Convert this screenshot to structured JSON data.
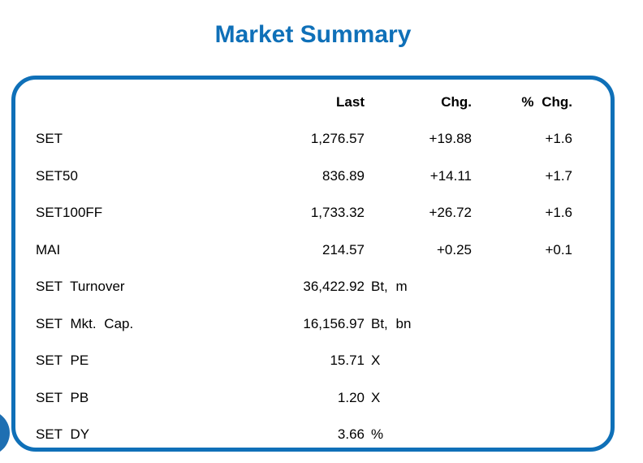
{
  "page": {
    "title": "Market Summary"
  },
  "colors": {
    "accent": "#0f70b8",
    "circle": "#1e6fb2",
    "text": "#000000"
  },
  "decor": {
    "corner_circle": "blue-circle"
  },
  "chart_data": {
    "type": "table",
    "title": "Market Summary",
    "columns": [
      "",
      "Last",
      "Chg.",
      "% Chg."
    ],
    "rows": [
      [
        "SET",
        "1,276.57",
        "+19.88",
        "+1.6"
      ],
      [
        "SET50",
        "836.89",
        "+14.11",
        "+1.7"
      ],
      [
        "SET100FF",
        "1,733.32",
        "+26.72",
        "+1.6"
      ],
      [
        "MAI",
        "214.57",
        "+0.25",
        "+0.1"
      ],
      [
        "SET Turnover",
        "36,422.92 Bt, m",
        "",
        ""
      ],
      [
        "SET Mkt. Cap.",
        "16,156.97 Bt, bn",
        "",
        ""
      ],
      [
        "SET PE",
        "15.71 X",
        "",
        ""
      ],
      [
        "SET PB",
        "1.20 X",
        "",
        ""
      ],
      [
        "SET DY",
        "3.66 %",
        "",
        ""
      ]
    ]
  },
  "table": {
    "headers": {
      "last": "Last",
      "chg": "Chg.",
      "pct_chg": "% Chg."
    },
    "rows": [
      {
        "name": "SET",
        "last": "1,276.57",
        "unit": "",
        "chg": "+19.88",
        "pct": "+1.6"
      },
      {
        "name": "SET50",
        "last": "836.89",
        "unit": "",
        "chg": "+14.11",
        "pct": "+1.7"
      },
      {
        "name": "SET100FF",
        "last": "1,733.32",
        "unit": "",
        "chg": "+26.72",
        "pct": "+1.6"
      },
      {
        "name": "MAI",
        "last": "214.57",
        "unit": "",
        "chg": "+0.25",
        "pct": "+0.1"
      },
      {
        "name": "SET Turnover",
        "last": "36,422.92",
        "unit": "Bt, m",
        "chg": "",
        "pct": ""
      },
      {
        "name": "SET Mkt. Cap.",
        "last": "16,156.97",
        "unit": "Bt, bn",
        "chg": "",
        "pct": ""
      },
      {
        "name": "SET PE",
        "last": "15.71",
        "unit": "X",
        "chg": "",
        "pct": ""
      },
      {
        "name": "SET PB",
        "last": "1.20",
        "unit": "X",
        "chg": "",
        "pct": ""
      },
      {
        "name": "SET DY",
        "last": "3.66",
        "unit": "%",
        "chg": "",
        "pct": ""
      }
    ]
  }
}
